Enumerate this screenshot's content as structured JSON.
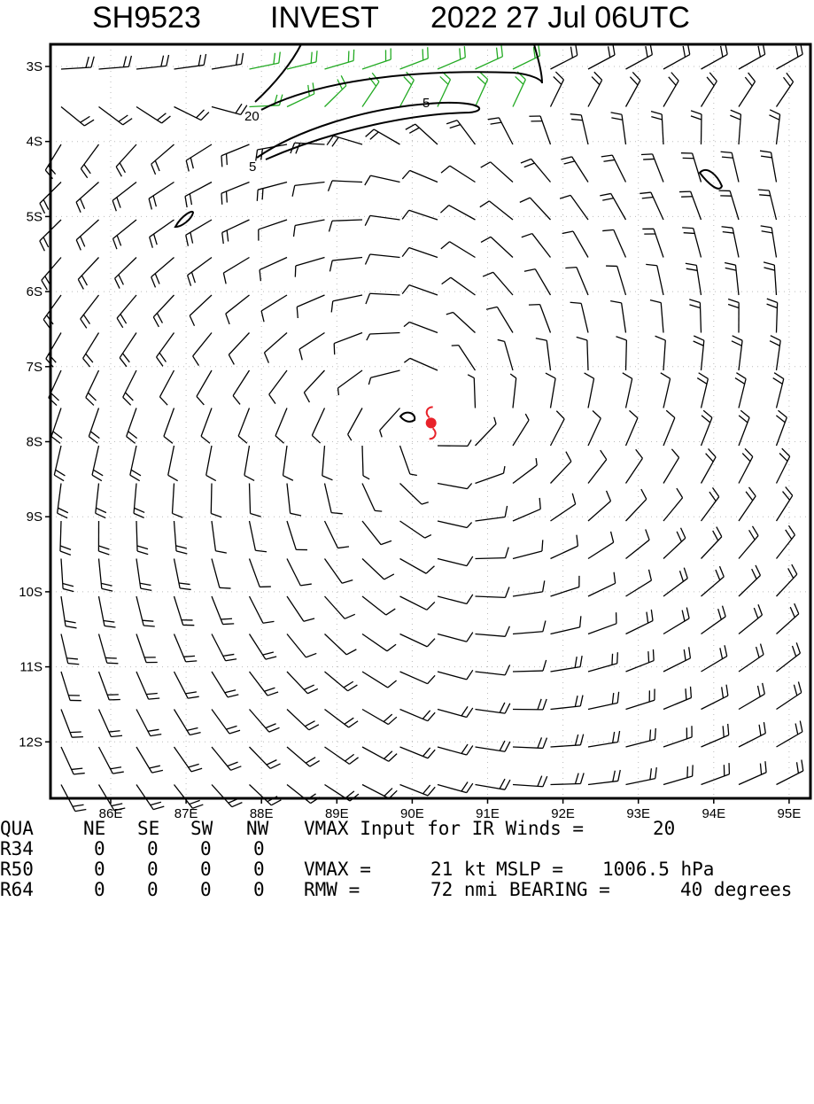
{
  "title": {
    "storm_id": "SH9523",
    "storm_name": "INVEST",
    "datetime": "2022 27 Jul 06UTC"
  },
  "map": {
    "lat_labels": [
      "3S",
      "4S",
      "5S",
      "6S",
      "7S",
      "8S",
      "9S",
      "10S",
      "11S",
      "12S"
    ],
    "lon_labels": [
      "86E",
      "87E",
      "88E",
      "89E",
      "90E",
      "91E",
      "92E",
      "93E",
      "94E",
      "95E"
    ],
    "contour_labels": [
      "20",
      "5",
      "5"
    ],
    "storm_center": {
      "lat": -7.75,
      "lon": 90.25,
      "symbol": "tropical-storm-symbol",
      "color": "#e8222a"
    },
    "green_barb_color": "#22aa22",
    "barb_color": "#000000"
  },
  "table": {
    "header": [
      "QUA",
      "NE",
      "SE",
      "SW",
      "NW"
    ],
    "rows": [
      {
        "label": "R34",
        "values": [
          "0",
          "0",
          "0",
          "0"
        ]
      },
      {
        "label": "R50",
        "values": [
          "0",
          "0",
          "0",
          "0"
        ]
      },
      {
        "label": "R64",
        "values": [
          "0",
          "0",
          "0",
          "0"
        ]
      }
    ],
    "vmax_input_text": "VMAX Input for IR Winds =",
    "vmax_input_value": "20",
    "vmax_label": "VMAX =",
    "vmax_value": "21 kt",
    "mslp_label": "MSLP =",
    "mslp_value": "1006.5 hPa",
    "rmw_label": "RMW =",
    "rmw_value": "72 nmi",
    "bearing_label": "BEARING =",
    "bearing_value": "40 degrees"
  }
}
